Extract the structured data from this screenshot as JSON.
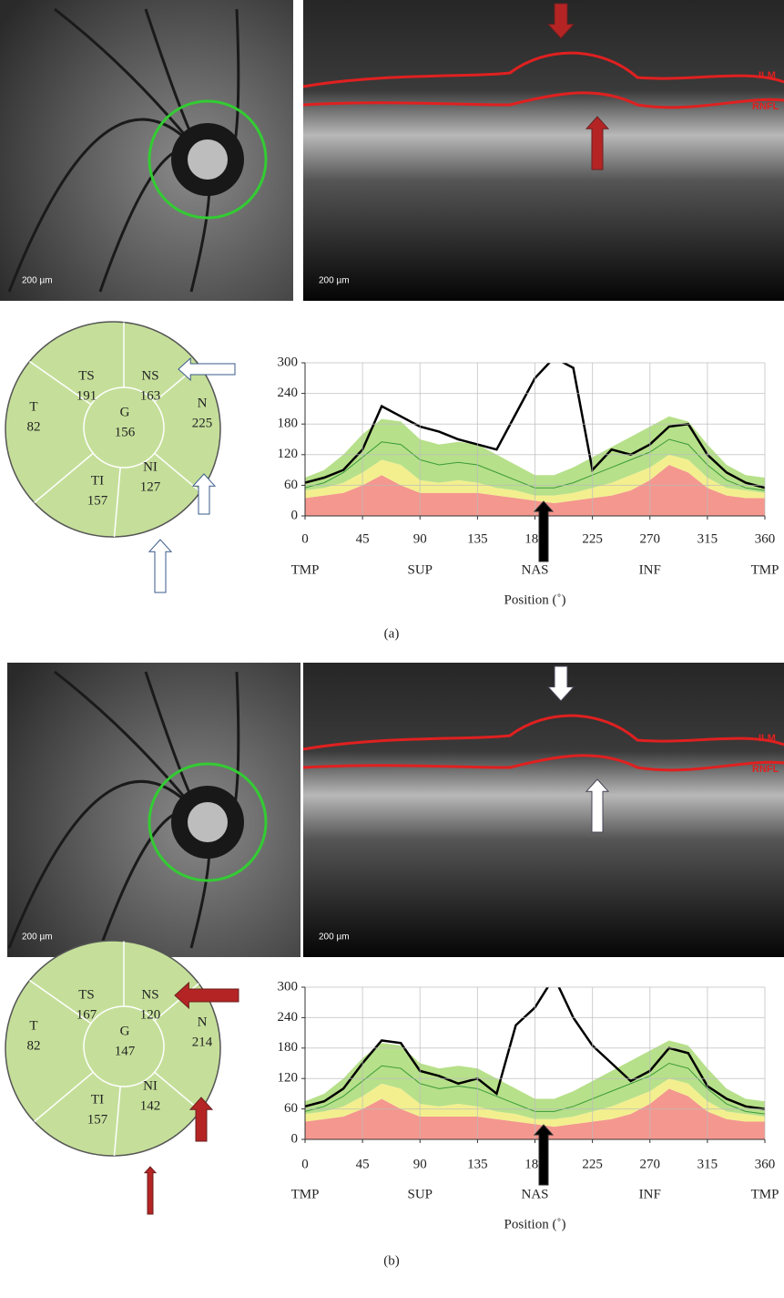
{
  "panels": [
    {
      "label": "(a)",
      "fundus_scale": "200 µm",
      "oct_scale": "200 µm",
      "ilm": "ILM",
      "rnfl": "RNFL",
      "sectors": [
        {
          "name": "TS",
          "value": 191
        },
        {
          "name": "NS",
          "value": 163
        },
        {
          "name": "T",
          "value": 82
        },
        {
          "name": "G",
          "value": 156
        },
        {
          "name": "N",
          "value": 225
        },
        {
          "name": "TI",
          "value": 157
        },
        {
          "name": "NI",
          "value": 127
        }
      ]
    },
    {
      "label": "(b)",
      "fundus_scale": "200 µm",
      "oct_scale": "200 µm",
      "ilm": "ILM",
      "rnfl": "RNFL",
      "sectors": [
        {
          "name": "TS",
          "value": 167
        },
        {
          "name": "NS",
          "value": 120
        },
        {
          "name": "T",
          "value": 82
        },
        {
          "name": "G",
          "value": 147
        },
        {
          "name": "N",
          "value": 214
        },
        {
          "name": "TI",
          "value": 157
        },
        {
          "name": "NI",
          "value": 142
        }
      ]
    }
  ],
  "chart_data": [
    {
      "type": "line",
      "xlabel": "Position (˚)",
      "xlim": [
        0,
        360
      ],
      "ylim": [
        0,
        300
      ],
      "xticks": [
        0,
        45,
        90,
        135,
        180,
        225,
        270,
        315,
        360
      ],
      "yticks": [
        0,
        60,
        120,
        180,
        240,
        300
      ],
      "region_ticks": [
        {
          "value": 0,
          "label": "TMP"
        },
        {
          "value": 90,
          "label": "SUP"
        },
        {
          "value": 180,
          "label": "NAS"
        },
        {
          "value": 270,
          "label": "INF"
        },
        {
          "value": 360,
          "label": "TMP"
        }
      ],
      "grid": true,
      "x": [
        0,
        15,
        30,
        45,
        60,
        75,
        90,
        105,
        120,
        135,
        150,
        165,
        180,
        195,
        210,
        225,
        240,
        255,
        270,
        285,
        300,
        315,
        330,
        345,
        360
      ],
      "series": [
        {
          "kind": "area",
          "color": "#f4978e",
          "values": [
            35,
            40,
            45,
            60,
            80,
            60,
            45,
            45,
            45,
            45,
            40,
            35,
            30,
            25,
            30,
            35,
            40,
            50,
            70,
            100,
            85,
            55,
            40,
            35,
            35
          ]
        },
        {
          "kind": "area",
          "color": "#f3ef8f",
          "values": [
            15,
            15,
            20,
            25,
            30,
            40,
            25,
            20,
            25,
            20,
            15,
            15,
            10,
            15,
            15,
            20,
            25,
            30,
            25,
            20,
            25,
            20,
            15,
            15,
            10
          ]
        },
        {
          "kind": "area",
          "color": "#b7e08a",
          "values": [
            25,
            35,
            55,
            75,
            80,
            85,
            80,
            75,
            75,
            75,
            65,
            50,
            40,
            40,
            50,
            60,
            70,
            75,
            80,
            75,
            75,
            65,
            45,
            30,
            30
          ]
        },
        {
          "kind": "line",
          "color": "#3a9a3a",
          "values": [
            55,
            65,
            85,
            115,
            145,
            140,
            110,
            100,
            105,
            100,
            85,
            70,
            55,
            55,
            65,
            80,
            95,
            110,
            125,
            150,
            140,
            100,
            70,
            55,
            50
          ]
        },
        {
          "kind": "line",
          "color": "#000000",
          "values": [
            65,
            75,
            90,
            130,
            215,
            195,
            175,
            165,
            150,
            140,
            130,
            200,
            270,
            310,
            290,
            90,
            130,
            120,
            140,
            175,
            180,
            120,
            85,
            65,
            55
          ]
        }
      ]
    },
    {
      "type": "line",
      "xlabel": "Position (˚)",
      "xlim": [
        0,
        360
      ],
      "ylim": [
        0,
        300
      ],
      "xticks": [
        0,
        45,
        90,
        135,
        180,
        225,
        270,
        315,
        360
      ],
      "yticks": [
        0,
        60,
        120,
        180,
        240,
        300
      ],
      "region_ticks": [
        {
          "value": 0,
          "label": "TMP"
        },
        {
          "value": 90,
          "label": "SUP"
        },
        {
          "value": 180,
          "label": "NAS"
        },
        {
          "value": 270,
          "label": "INF"
        },
        {
          "value": 360,
          "label": "TMP"
        }
      ],
      "grid": true,
      "x": [
        0,
        15,
        30,
        45,
        60,
        75,
        90,
        105,
        120,
        135,
        150,
        165,
        180,
        195,
        210,
        225,
        240,
        255,
        270,
        285,
        300,
        315,
        330,
        345,
        360
      ],
      "series": [
        {
          "kind": "area",
          "color": "#f4978e",
          "values": [
            35,
            40,
            45,
            60,
            80,
            60,
            45,
            45,
            45,
            45,
            40,
            35,
            30,
            25,
            30,
            35,
            40,
            50,
            70,
            100,
            85,
            55,
            40,
            35,
            35
          ]
        },
        {
          "kind": "area",
          "color": "#f3ef8f",
          "values": [
            15,
            15,
            20,
            25,
            30,
            40,
            25,
            20,
            25,
            20,
            15,
            15,
            10,
            15,
            15,
            20,
            25,
            30,
            25,
            20,
            25,
            20,
            15,
            15,
            10
          ]
        },
        {
          "kind": "area",
          "color": "#b7e08a",
          "values": [
            25,
            35,
            55,
            75,
            80,
            85,
            80,
            75,
            75,
            75,
            65,
            50,
            40,
            40,
            50,
            60,
            70,
            75,
            80,
            75,
            75,
            65,
            45,
            30,
            30
          ]
        },
        {
          "kind": "line",
          "color": "#3a9a3a",
          "values": [
            55,
            65,
            85,
            115,
            145,
            140,
            110,
            100,
            105,
            100,
            85,
            70,
            55,
            55,
            65,
            80,
            95,
            110,
            125,
            150,
            140,
            100,
            70,
            55,
            50
          ]
        },
        {
          "kind": "line",
          "color": "#000000",
          "values": [
            65,
            75,
            100,
            150,
            195,
            190,
            135,
            125,
            110,
            120,
            90,
            225,
            260,
            320,
            240,
            185,
            150,
            115,
            135,
            180,
            170,
            105,
            80,
            65,
            60
          ]
        }
      ]
    }
  ]
}
